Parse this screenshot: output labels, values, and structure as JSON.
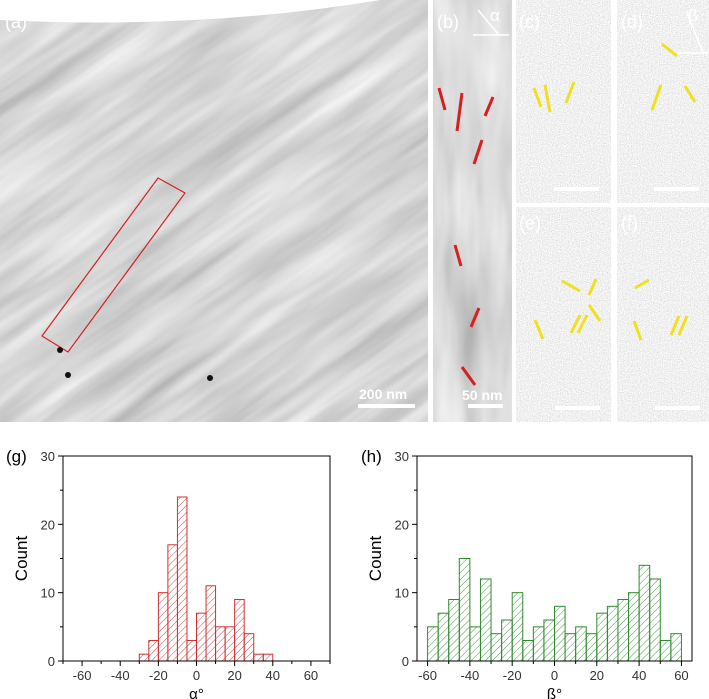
{
  "micrographs": {
    "panel_a": {
      "label": "(a)",
      "scale_bar": "200 nm"
    },
    "panel_b": {
      "label": "(b)",
      "angle_symbol": "α",
      "scale_bar": "50 nm"
    },
    "panel_c": {
      "label": "(c)"
    },
    "panel_d": {
      "label": "(d)",
      "angle_symbol": "β"
    },
    "panel_e": {
      "label": "(e)"
    },
    "panel_f": {
      "label": "(f)"
    }
  },
  "colors": {
    "alpha_marks": "#d42020",
    "beta_marks": "#f0e020",
    "hist_alpha": "#d03030",
    "hist_beta": "#2e8b2e"
  },
  "chart_data": [
    {
      "panel_label": "(g)",
      "type": "bar",
      "xlabel": "α°",
      "ylabel": "Count",
      "xlim": [
        -70,
        70
      ],
      "ylim": [
        0,
        30
      ],
      "xticks": [
        -60,
        -40,
        -20,
        0,
        20,
        40,
        60
      ],
      "yticks": [
        0,
        10,
        20,
        30
      ],
      "bin_width": 5,
      "bin_centers": [
        -27.5,
        -22.5,
        -17.5,
        -12.5,
        -7.5,
        -2.5,
        2.5,
        7.5,
        12.5,
        17.5,
        22.5,
        27.5,
        32.5,
        37.5
      ],
      "values": [
        1,
        3,
        10,
        17,
        24,
        3,
        7,
        11,
        5,
        5,
        9,
        4,
        1,
        1
      ],
      "color": "#d03030"
    },
    {
      "panel_label": "(h)",
      "type": "bar",
      "xlabel": "ß°",
      "ylabel": "Count",
      "xlim": [
        -65,
        65
      ],
      "ylim": [
        0,
        30
      ],
      "xticks": [
        -60,
        -40,
        -20,
        0,
        20,
        40,
        60
      ],
      "yticks": [
        0,
        10,
        20,
        30
      ],
      "bin_width": 5,
      "bin_centers": [
        -57.5,
        -52.5,
        -47.5,
        -42.5,
        -37.5,
        -32.5,
        -27.5,
        -22.5,
        -17.5,
        -12.5,
        -7.5,
        -2.5,
        2.5,
        7.5,
        12.5,
        17.5,
        22.5,
        27.5,
        32.5,
        37.5,
        42.5,
        47.5,
        52.5,
        57.5
      ],
      "values": [
        5,
        7,
        9,
        15,
        5,
        12,
        4,
        6,
        10,
        3,
        5,
        6,
        8,
        4,
        5,
        4,
        7,
        8,
        9,
        10,
        14,
        12,
        3,
        4
      ],
      "color": "#2e8b2e"
    }
  ]
}
